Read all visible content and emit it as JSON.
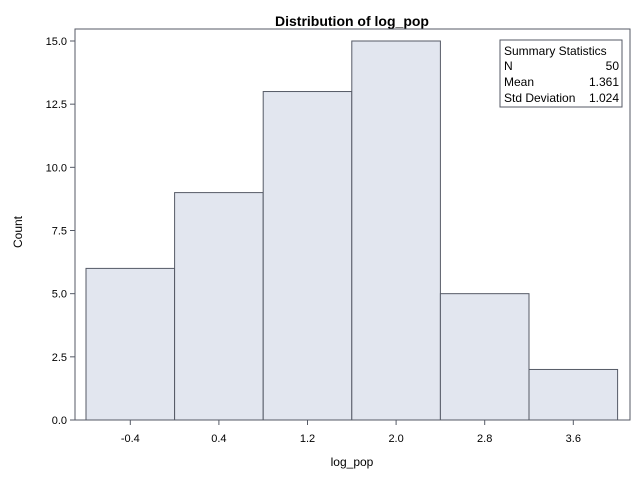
{
  "chart_data": {
    "type": "bar",
    "title": "Distribution of log_pop",
    "xlabel": "log_pop",
    "ylabel": "Count",
    "categories": [
      "-0.4",
      "0.4",
      "1.2",
      "2.0",
      "2.8",
      "3.6"
    ],
    "values": [
      6,
      9,
      13,
      15,
      5,
      2
    ],
    "ylim": [
      0,
      15
    ],
    "yticks": [
      "0.0",
      "2.5",
      "5.0",
      "7.5",
      "10.0",
      "12.5",
      "15.0"
    ],
    "grid": false,
    "legend": "none",
    "bar_color": "#e2e6ef",
    "summary_statistics": {
      "heading": "Summary Statistics",
      "rows": [
        {
          "label": "N",
          "value": "50"
        },
        {
          "label": "Mean",
          "value": "1.361"
        },
        {
          "label": "Std Deviation",
          "value": "1.024"
        }
      ]
    }
  }
}
